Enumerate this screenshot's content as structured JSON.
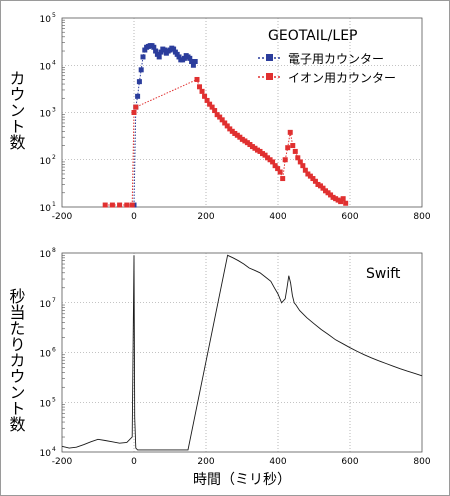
{
  "chart_data": [
    {
      "type": "scatter",
      "title": "GEOTAIL/LEP",
      "xlabel": "",
      "ylabel": "カウント数",
      "xlim": [
        -200,
        800
      ],
      "ylim": [
        10,
        100000
      ],
      "yscale": "log",
      "xticks": [
        "-200",
        "0",
        "200",
        "400",
        "600",
        "800"
      ],
      "yticks": [
        "10",
        "10",
        "10",
        "10",
        "10"
      ],
      "yticks_exp": [
        "1",
        "2",
        "3",
        "4",
        "5"
      ],
      "grid": true,
      "legend_position": "top-right",
      "series": [
        {
          "name": "電子用カウンター",
          "color": "#2b3d9c",
          "x": [
            0,
            5,
            10,
            15,
            20,
            25,
            30,
            35,
            40,
            45,
            50,
            55,
            60,
            65,
            70,
            75,
            80,
            85,
            90,
            95,
            100,
            105,
            110,
            115,
            120,
            125,
            130,
            135,
            140,
            145,
            150,
            155,
            160,
            165,
            170
          ],
          "y": [
            11,
            1300,
            2200,
            4500,
            8000,
            15000,
            21000,
            24000,
            25000,
            26000,
            26000,
            24000,
            20000,
            17000,
            15000,
            19000,
            22000,
            21000,
            18000,
            20000,
            21000,
            23000,
            22000,
            19000,
            17000,
            15000,
            13000,
            13000,
            14000,
            16000,
            15000,
            14000,
            12000,
            10000,
            12000
          ]
        },
        {
          "name": "イオン用カウンター",
          "color": "#e03030",
          "x": [
            -80,
            -60,
            -40,
            -20,
            -5,
            0,
            5,
            175,
            182,
            189,
            196,
            203,
            210,
            217,
            224,
            231,
            238,
            245,
            252,
            259,
            266,
            273,
            280,
            287,
            294,
            301,
            308,
            315,
            322,
            329,
            336,
            343,
            350,
            357,
            364,
            371,
            378,
            385,
            392,
            399,
            406,
            413,
            420,
            427,
            434,
            441,
            448,
            455,
            462,
            469,
            476,
            483,
            490,
            497,
            504,
            511,
            518,
            525,
            532,
            539,
            546,
            553,
            560,
            567,
            574,
            581,
            588
          ],
          "y": [
            11,
            11,
            11,
            11,
            11,
            1000,
            1300,
            5000,
            3500,
            2800,
            2200,
            1800,
            1500,
            1300,
            1100,
            900,
            800,
            700,
            600,
            520,
            450,
            400,
            360,
            330,
            300,
            270,
            250,
            230,
            210,
            190,
            175,
            160,
            150,
            135,
            125,
            110,
            100,
            90,
            75,
            65,
            55,
            40,
            100,
            180,
            380,
            200,
            150,
            110,
            90,
            75,
            60,
            50,
            45,
            40,
            35,
            30,
            28,
            25,
            22,
            20,
            18,
            16,
            15,
            14,
            13,
            15,
            12
          ]
        }
      ]
    },
    {
      "type": "line",
      "title": "Swift",
      "xlabel": "時間（ミリ秒）",
      "ylabel": "秒当たりカウント数",
      "xlim": [
        -200,
        800
      ],
      "ylim": [
        10000,
        100000000
      ],
      "yscale": "log",
      "xticks": [
        "-200",
        "0",
        "200",
        "400",
        "600",
        "800"
      ],
      "yticks": [
        "10",
        "10",
        "10",
        "10",
        "10"
      ],
      "yticks_exp": [
        "4",
        "5",
        "6",
        "7",
        "8"
      ],
      "grid": true,
      "series": [
        {
          "color": "#1a1a1a",
          "x": [
            -200,
            -180,
            -160,
            -140,
            -120,
            -100,
            -80,
            -60,
            -40,
            -20,
            -5,
            0,
            2,
            5,
            10,
            50,
            150,
            260,
            275,
            290,
            305,
            320,
            335,
            350,
            365,
            380,
            390,
            400,
            410,
            420,
            425,
            430,
            435,
            440,
            445,
            450,
            460,
            480,
            500,
            520,
            540,
            560,
            580,
            600,
            620,
            640,
            660,
            680,
            700,
            720,
            740,
            760,
            780,
            800
          ],
          "y": [
            13000,
            12000,
            12500,
            14000,
            16000,
            18000,
            17000,
            16000,
            15000,
            15500,
            20000,
            90000000,
            50000,
            12000,
            11000,
            11000,
            11000,
            90000000,
            80000000,
            70000000,
            60000000,
            50000000,
            45000000,
            40000000,
            33000000,
            27000000,
            20000000,
            15000000,
            10000000,
            12000000,
            20000000,
            35000000,
            25000000,
            14000000,
            10000000,
            9000000,
            7000000,
            5000000,
            3800000,
            2900000,
            2300000,
            1800000,
            1500000,
            1250000,
            1050000,
            900000,
            780000,
            680000,
            600000,
            530000,
            470000,
            420000,
            380000,
            340000
          ]
        }
      ]
    }
  ]
}
